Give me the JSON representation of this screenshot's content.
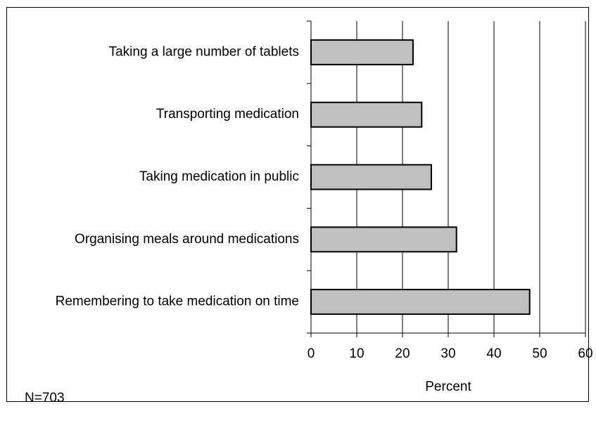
{
  "chart_data": {
    "type": "bar",
    "orientation": "horizontal",
    "categories": [
      "Taking a large number of tablets",
      "Transporting medication",
      "Taking medication in public",
      "Organising meals around medications",
      "Remembering to take medication on time"
    ],
    "values": [
      22.3,
      24.2,
      26.3,
      31.8,
      47.8
    ],
    "xlabel": "Percent",
    "ylabel": "",
    "xlim": [
      0,
      60
    ],
    "xticks": [
      0,
      10,
      20,
      30,
      40,
      50,
      60
    ],
    "grid": "vertical",
    "bar_color": "#c0c0c0",
    "bar_stroke": "#000000"
  },
  "footnote": "N=703"
}
